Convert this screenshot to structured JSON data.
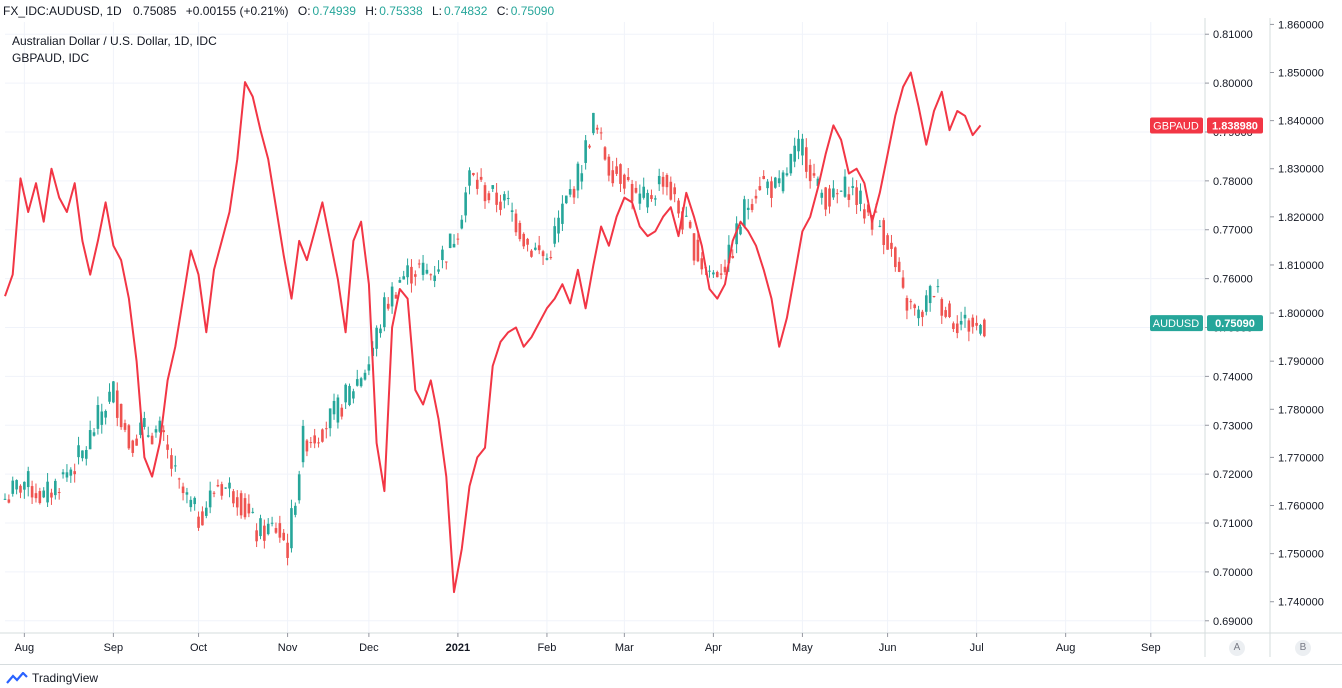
{
  "header": {
    "symbol": "FX_IDC:AUDUSD, 1D",
    "last": "0.75085",
    "change": "+0.00155 (+0.21%)",
    "o_label": "O:",
    "o_value": "0.74939",
    "h_label": "H:",
    "h_value": "0.75338",
    "l_label": "L:",
    "l_value": "0.74832",
    "c_label": "C:",
    "c_value": "0.75090"
  },
  "legend": {
    "main_title": "Australian Dollar / U.S. Dollar, 1D, IDC",
    "compare_title": "GBPAUD, IDC"
  },
  "branding": {
    "logo_text": "TradingView"
  },
  "scale_buttons": {
    "a": "A",
    "b": "B"
  },
  "colors": {
    "up": "#26a69a",
    "down": "#ef5350",
    "compare": "#f23645",
    "grid": "#f0f3fa",
    "axis_text": "#131722"
  },
  "chart_data": {
    "type": "candlestick+line",
    "title": "Australian Dollar / U.S. Dollar, 1D, IDC",
    "x_tick_labels": [
      "Aug",
      "Sep",
      "Oct",
      "Nov",
      "Dec",
      "2021",
      "Feb",
      "Mar",
      "Apr",
      "May",
      "Jun",
      "Jul",
      "Aug",
      "Sep"
    ],
    "x_tick_day_index": [
      5,
      28,
      50,
      73,
      94,
      117,
      140,
      160,
      183,
      206,
      228,
      251,
      274,
      296
    ],
    "day_range": [
      0,
      310
    ],
    "left_axis": {
      "label": "AUDUSD",
      "ylim": [
        0.6875,
        0.8125
      ],
      "ticks": [
        "0.69000",
        "0.70000",
        "0.71000",
        "0.72000",
        "0.73000",
        "0.74000",
        "0.75000",
        "0.76000",
        "0.77000",
        "0.78000",
        "0.79000",
        "0.80000",
        "0.81000"
      ]
    },
    "right_axis": {
      "label": "GBPAUD",
      "ylim": [
        1.7335,
        1.8605
      ],
      "ticks": [
        "1.740000",
        "1.750000",
        "1.760000",
        "1.770000",
        "1.780000",
        "1.790000",
        "1.800000",
        "1.810000",
        "1.820000",
        "1.830000",
        "1.840000",
        "1.850000",
        "1.860000"
      ]
    },
    "series": [
      {
        "name": "AUDUSD",
        "kind": "candlestick-close",
        "label": "AUDUSD",
        "last_value_label": "0.75090",
        "x_day": [
          0,
          5,
          10,
          15,
          20,
          25,
          28,
          32,
          35,
          40,
          45,
          50,
          55,
          60,
          65,
          70,
          73,
          77,
          80,
          85,
          90,
          94,
          98,
          102,
          106,
          110,
          115,
          117,
          120,
          125,
          130,
          135,
          140,
          144,
          148,
          152,
          156,
          160,
          163,
          166,
          170,
          175,
          180,
          183,
          187,
          191,
          195,
          200,
          203,
          206,
          210,
          214,
          218,
          222,
          226,
          228,
          232,
          236,
          240,
          244,
          248,
          251,
          253
        ],
        "close": [
          0.715,
          0.7185,
          0.715,
          0.7195,
          0.724,
          0.733,
          0.737,
          0.7265,
          0.729,
          0.7285,
          0.717,
          0.711,
          0.718,
          0.716,
          0.708,
          0.709,
          0.705,
          0.727,
          0.728,
          0.732,
          0.738,
          0.743,
          0.754,
          0.76,
          0.762,
          0.761,
          0.767,
          0.771,
          0.781,
          0.777,
          0.775,
          0.767,
          0.764,
          0.774,
          0.781,
          0.792,
          0.783,
          0.781,
          0.776,
          0.776,
          0.781,
          0.772,
          0.763,
          0.761,
          0.764,
          0.774,
          0.78,
          0.778,
          0.784,
          0.787,
          0.778,
          0.776,
          0.779,
          0.774,
          0.771,
          0.768,
          0.756,
          0.752,
          0.758,
          0.752,
          0.751,
          0.75,
          0.7509
        ]
      },
      {
        "name": "GBPAUD",
        "kind": "line",
        "label": "GBPAUD",
        "last_value_label": "1.838980",
        "x_day": [
          0,
          2,
          4,
          6,
          8,
          10,
          12,
          14,
          16,
          18,
          20,
          22,
          24,
          26,
          28,
          30,
          32,
          34,
          36,
          38,
          40,
          42,
          44,
          46,
          48,
          50,
          52,
          54,
          56,
          58,
          60,
          62,
          64,
          66,
          68,
          70,
          72,
          74,
          76,
          78,
          80,
          82,
          84,
          86,
          88,
          90,
          92,
          94,
          96,
          98,
          100,
          102,
          104,
          106,
          108,
          110,
          112,
          114,
          116,
          118,
          120,
          122,
          124,
          126,
          128,
          130,
          132,
          134,
          136,
          138,
          140,
          142,
          144,
          146,
          148,
          150,
          152,
          154,
          156,
          158,
          160,
          162,
          164,
          166,
          168,
          170,
          172,
          174,
          176,
          178,
          180,
          182,
          184,
          186,
          188,
          190,
          192,
          194,
          196,
          198,
          200,
          202,
          204,
          206,
          208,
          210,
          212,
          214,
          216,
          218,
          220,
          222,
          224,
          226,
          228,
          230,
          232,
          234,
          236,
          238,
          240,
          242,
          244,
          246,
          248,
          250,
          252
        ],
        "values": [
          1.8035,
          1.808,
          1.828,
          1.821,
          1.827,
          1.819,
          1.83,
          1.824,
          1.821,
          1.827,
          1.815,
          1.808,
          1.815,
          1.823,
          1.814,
          1.811,
          1.803,
          1.79,
          1.77,
          1.766,
          1.773,
          1.786,
          1.793,
          1.803,
          1.813,
          1.808,
          1.796,
          1.809,
          1.815,
          1.821,
          1.832,
          1.848,
          1.845,
          1.838,
          1.832,
          1.822,
          1.812,
          1.803,
          1.815,
          1.811,
          1.817,
          1.823,
          1.815,
          1.807,
          1.796,
          1.815,
          1.819,
          1.806,
          1.773,
          1.763,
          1.797,
          1.805,
          1.803,
          1.784,
          1.781,
          1.786,
          1.778,
          1.766,
          1.742,
          1.751,
          1.764,
          1.77,
          1.772,
          1.789,
          1.794,
          1.796,
          1.797,
          1.793,
          1.795,
          1.798,
          1.801,
          1.803,
          1.806,
          1.802,
          1.809,
          1.801,
          1.81,
          1.818,
          1.814,
          1.82,
          1.824,
          1.823,
          1.818,
          1.816,
          1.817,
          1.82,
          1.822,
          1.816,
          1.825,
          1.82,
          1.814,
          1.805,
          1.803,
          1.806,
          1.815,
          1.819,
          1.817,
          1.814,
          1.809,
          1.803,
          1.793,
          1.799,
          1.808,
          1.817,
          1.82,
          1.826,
          1.833,
          1.839,
          1.836,
          1.829,
          1.83,
          1.827,
          1.819,
          1.825,
          1.833,
          1.841,
          1.847,
          1.85,
          1.843,
          1.835,
          1.842,
          1.846,
          1.838,
          1.842,
          1.841,
          1.837,
          1.839
        ]
      }
    ]
  }
}
